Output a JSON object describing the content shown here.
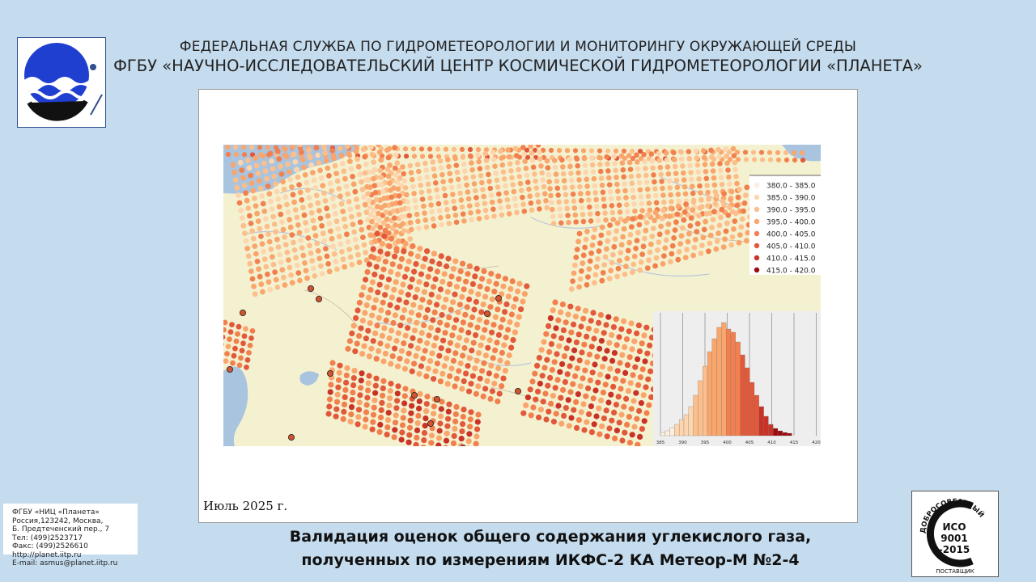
{
  "header": {
    "line1": "ФЕДЕРАЛЬНАЯ СЛУЖБА ПО ГИДРОМЕТЕОРОЛОГИИ И МОНИТОРИНГУ ОКРУЖАЮЩЕЙ СРЕДЫ",
    "line2": "ФГБУ «НАУЧНО-ИССЛЕДОВАТЕЛЬСКИЙ ЦЕНТР КОСМИЧЕСКОЙ ГИДРОМЕТЕОРОЛОГИИ «ПЛАНЕТА»"
  },
  "logo_icon": "planeta-logo",
  "map": {
    "date_label": "Июль  2025 г.",
    "legend": [
      {
        "label": "380.0 - 385.0",
        "color": "#fdeede"
      },
      {
        "label": "385.0 - 390.0",
        "color": "#fdd5ae"
      },
      {
        "label": "390.0 - 395.0",
        "color": "#fcbf8c"
      },
      {
        "label": "395.0 - 400.0",
        "color": "#f9a56c"
      },
      {
        "label": "400.0 - 405.0",
        "color": "#f2804e"
      },
      {
        "label": "405.0 - 410.0",
        "color": "#e2583a"
      },
      {
        "label": "410.0 - 415.0",
        "color": "#c93227"
      },
      {
        "label": "415.0 - 420.0",
        "color": "#9a0a0f"
      }
    ],
    "histogram": {
      "tick_labels": [
        "385",
        "390",
        "395",
        "400",
        "405",
        "410",
        "415",
        "420"
      ]
    }
  },
  "contacts": [
    "ФГБУ «НИЦ «Планета»",
    "Россия,123242, Москва,",
    "Б. Предтеченский пер., 7",
    "Тел:   (499)2523717",
    "Факс: (499)2526610",
    "http://planet.iitp.ru",
    "E-mail: asmus@planet.iitp.ru"
  ],
  "footer": {
    "title_line1": "Валидация оценок общего содержания углекислого газа,",
    "title_line2": "полученных по измерениям ИКФС-2 КА Метеор-М №2-4"
  },
  "iso_badge": {
    "top_text": "ДОБРОСОВЕСТНЫЙ",
    "iso": "ИСО",
    "number": "9001",
    "year": "-2015",
    "bottom_text": "ПОСТАВЩИК"
  }
}
